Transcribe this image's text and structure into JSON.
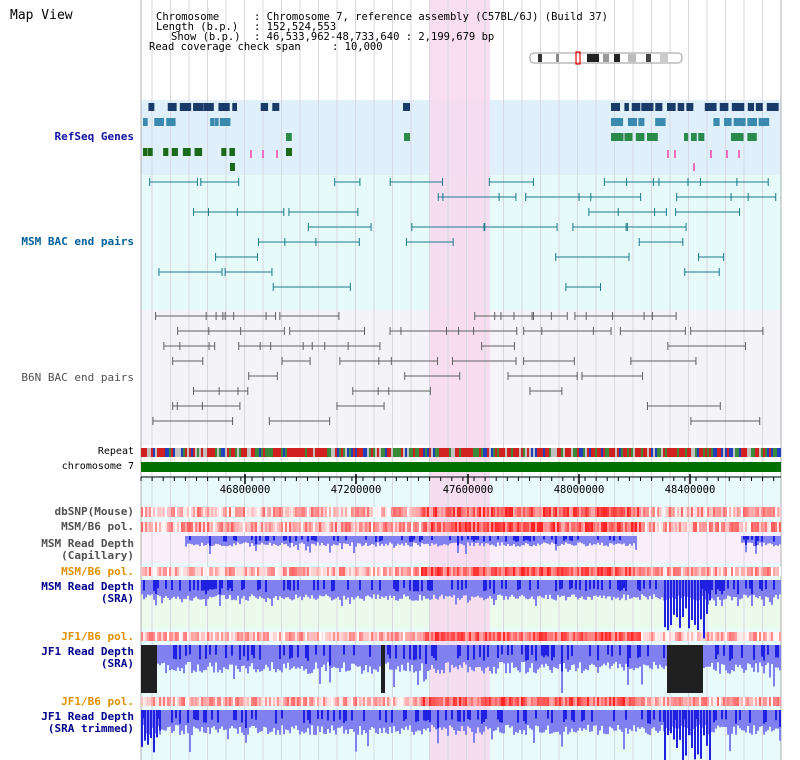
{
  "app": {
    "title": "Map View"
  },
  "header": {
    "chromosome_label": "Chromosome",
    "chromosome_value": ": Chromosome 7, reference assembly (C57BL/6J) (Build 37)",
    "length_label": "Length (b.p.)",
    "length_value": ": 152,524,553",
    "show_label": "Show (b.p.)",
    "show_value": ": 46,533,962-48,733,640 : 2,199,679 bp",
    "coverage_label": "Read coverage check span",
    "coverage_value": ": 10,000"
  },
  "tracks": {
    "refseq": "RefSeq Genes",
    "msm_bac": "MSM BAC end pairs",
    "b6n_bac": "B6N BAC end pairs",
    "repeat": "Repeat",
    "chromosome": "chromosome 7",
    "dbsnp": "dbSNP(Mouse)",
    "msm_pol": "MSM/B6 pol.",
    "msm_depth_cap_1": "MSM Read Depth",
    "msm_depth_cap_2": "(Capillary)",
    "msm_pol2": "MSM/B6 pol.",
    "msm_depth_sra_1": "MSM Read Depth",
    "msm_depth_sra_2": "(SRA)",
    "jf1_pol": "JF1/B6 pol.",
    "jf1_depth_sra_1": "JF1 Read Depth",
    "jf1_depth_sra_2": "(SRA)",
    "jf1_pol2": "JF1/B6 pol.",
    "jf1_depth_trim_1": "JF1 Read Depth",
    "jf1_depth_trim_2": "(SRA trimmed)"
  },
  "axis": {
    "ticks": [
      "46800000",
      "47200000",
      "47600000",
      "48000000",
      "48400000"
    ]
  },
  "colors": {
    "refseq_bg": "#dff0fa",
    "msm_bg": "#e6fafa",
    "b6n_bg": "#f4f4f8",
    "highlight": "#f8d8f0",
    "chrom": "#007000",
    "depth_blue": "#2020e0",
    "depth_light": "#8080f0",
    "pol_red": "#e02020",
    "msm_label": "#00609a",
    "orange": "#e09000",
    "navy": "#00008b"
  }
}
